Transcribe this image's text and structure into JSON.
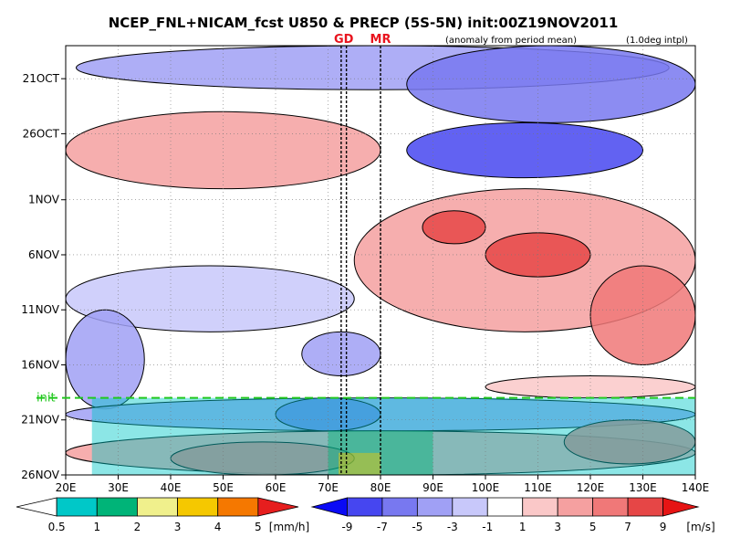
{
  "chart_data": {
    "type": "heatmap",
    "title": "NCEP_FNL+NICAM_fcst U850 & PRECP (5S-5N) init:00Z19NOV2011",
    "subtitle_anomaly": "(anomaly from period mean)",
    "subtitle_interp": "(1.0deg intpl)",
    "x_axis": {
      "range": [
        20,
        140
      ],
      "ticks": [
        20,
        30,
        40,
        50,
        60,
        70,
        80,
        90,
        100,
        110,
        120,
        130,
        140
      ],
      "tick_labels": [
        "20E",
        "30E",
        "40E",
        "50E",
        "60E",
        "70E",
        "80E",
        "90E",
        "100E",
        "110E",
        "120E",
        "130E",
        "140E"
      ]
    },
    "y_axis": {
      "range_days_oct": [
        18,
        57
      ],
      "ticks_day_of_oct": [
        21,
        26,
        32,
        37,
        42,
        47,
        52,
        57
      ],
      "tick_labels": [
        "21OCT",
        "26OCT",
        "1NOV",
        "6NOV",
        "11NOV",
        "16NOV",
        "21NOV",
        "26NOV"
      ],
      "direction": "time increases downward"
    },
    "markers": [
      {
        "label": "GD",
        "lon": [
          72.5,
          73.5
        ]
      },
      {
        "label": "MR",
        "lon": [
          80
        ]
      }
    ],
    "init": {
      "label": "init",
      "day_of_oct": 50
    },
    "u850_features": [
      {
        "lon": [
          22,
          135
        ],
        "day": [
          18,
          22
        ],
        "value": -3
      },
      {
        "lon": [
          85,
          140
        ],
        "day": [
          18,
          25
        ],
        "value": -5
      },
      {
        "lon": [
          85,
          130
        ],
        "day": [
          25,
          30
        ],
        "value": -7
      },
      {
        "lon": [
          20,
          80
        ],
        "day": [
          24,
          31
        ],
        "value": 3
      },
      {
        "lon": [
          75,
          140
        ],
        "day": [
          31,
          44
        ],
        "value": 3
      },
      {
        "lon": [
          88,
          100
        ],
        "day": [
          33,
          36
        ],
        "value": 7
      },
      {
        "lon": [
          100,
          120
        ],
        "day": [
          35,
          39
        ],
        "value": 7
      },
      {
        "lon": [
          120,
          140
        ],
        "day": [
          38,
          47
        ],
        "value": 5
      },
      {
        "lon": [
          20,
          75
        ],
        "day": [
          38,
          44
        ],
        "value": -1
      },
      {
        "lon": [
          20,
          35
        ],
        "day": [
          42,
          51
        ],
        "value": -3
      },
      {
        "lon": [
          65,
          80
        ],
        "day": [
          44,
          48
        ],
        "value": -3
      },
      {
        "lon": [
          100,
          140
        ],
        "day": [
          48,
          50
        ],
        "value": 1
      },
      {
        "lon": [
          20,
          140
        ],
        "day": [
          50,
          53
        ],
        "value": -3
      },
      {
        "lon": [
          60,
          80
        ],
        "day": [
          50,
          53
        ],
        "value": -5
      },
      {
        "lon": [
          20,
          140
        ],
        "day": [
          53,
          57
        ],
        "value": 3
      },
      {
        "lon": [
          40,
          75
        ],
        "day": [
          54,
          57
        ],
        "value": 5
      },
      {
        "lon": [
          115,
          140
        ],
        "day": [
          52,
          56
        ],
        "value": 5
      }
    ],
    "precip_features": [
      {
        "lon": [
          25,
          140
        ],
        "day": [
          50,
          57
        ],
        "value": 1
      },
      {
        "lon": [
          70,
          90
        ],
        "day": [
          53,
          57
        ],
        "value": 2
      },
      {
        "lon": [
          72,
          80
        ],
        "day": [
          55,
          57
        ],
        "value": 4
      }
    ]
  },
  "colorbars": {
    "precip": {
      "unit": "[mm/h]",
      "labels": [
        "0.5",
        "1",
        "2",
        "3",
        "4",
        "5"
      ],
      "colors": [
        "#ffffff",
        "#00c8c8",
        "#00b478",
        "#f0f08c",
        "#f5c800",
        "#f57800",
        "#e61e1e"
      ]
    },
    "u850": {
      "unit": "[m/s]",
      "labels": [
        "-9",
        "-7",
        "-5",
        "-3",
        "-1",
        "1",
        "3",
        "5",
        "7",
        "9"
      ],
      "colors": [
        "#0a0af5",
        "#4646f0",
        "#7878f0",
        "#a0a0f5",
        "#c8c8fa",
        "#ffffff",
        "#fac8c8",
        "#f5a0a0",
        "#f07878",
        "#e64646",
        "#e61414"
      ]
    }
  }
}
